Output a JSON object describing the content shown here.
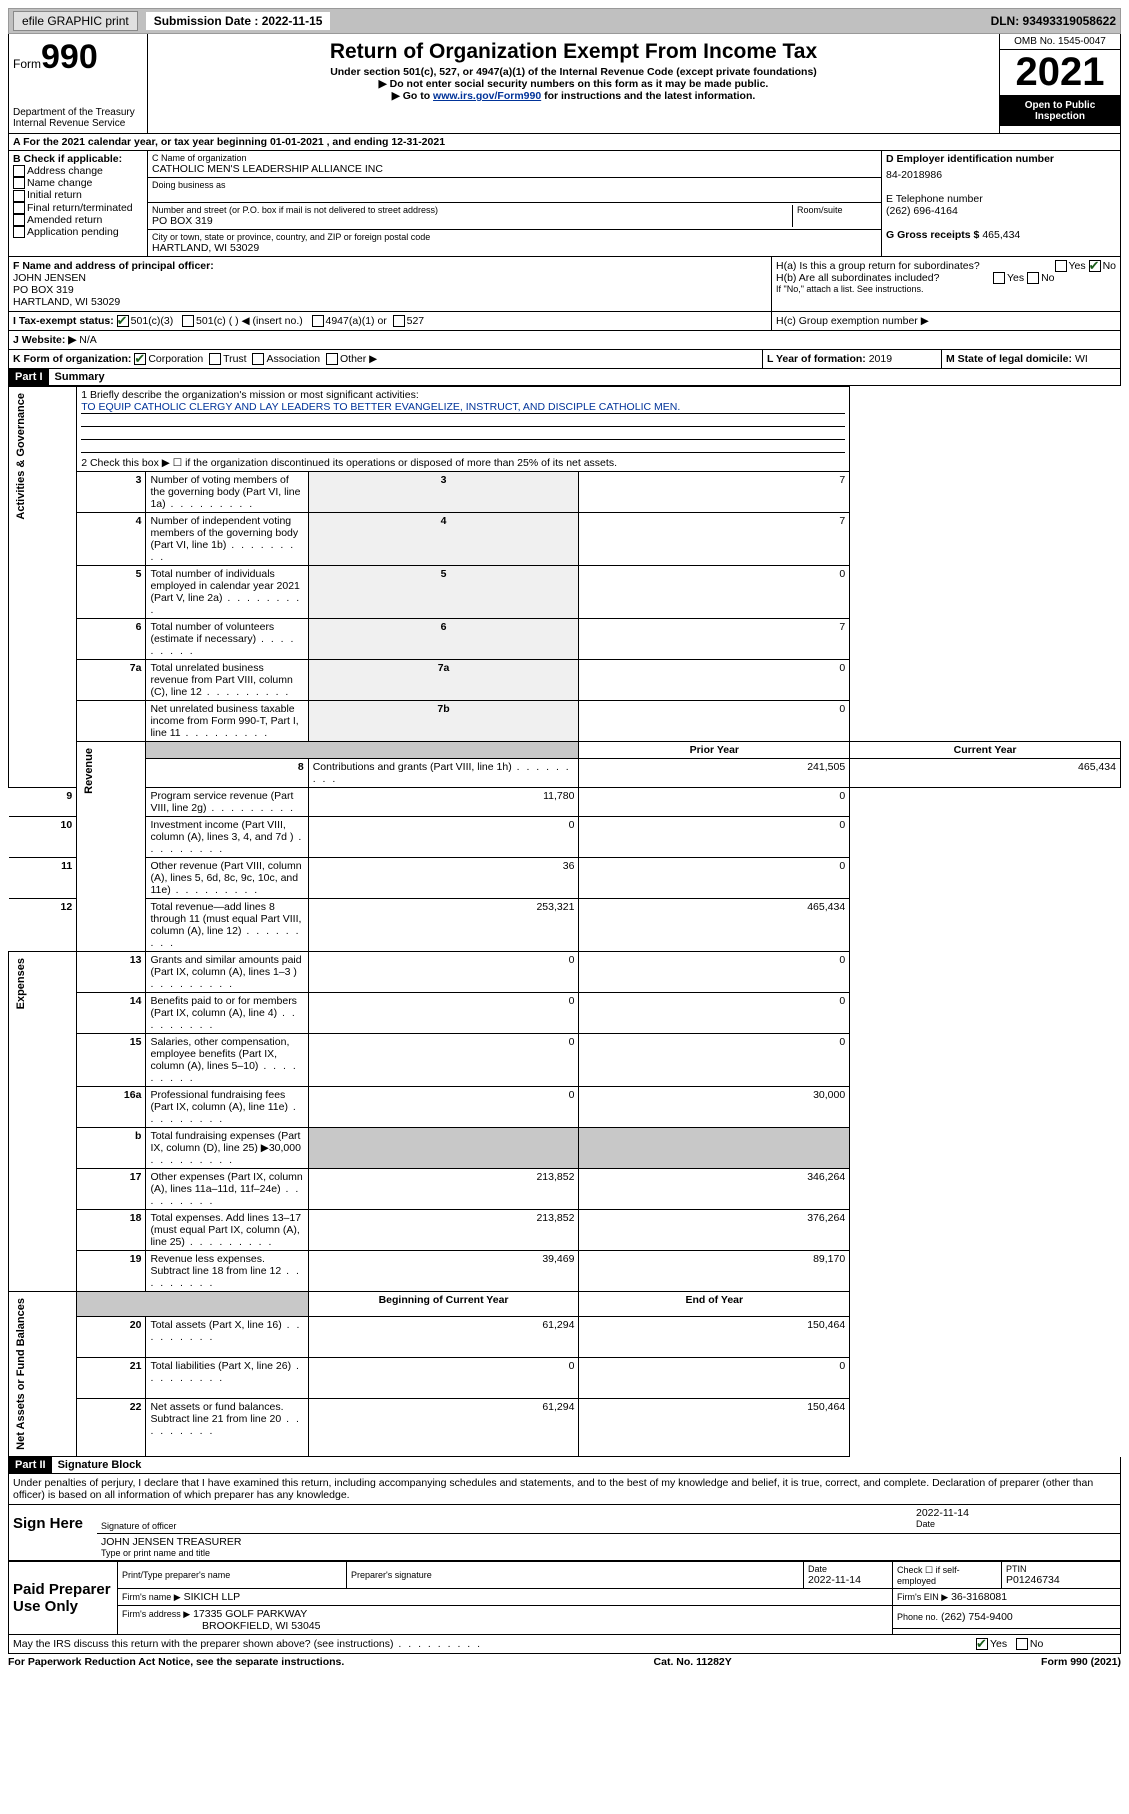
{
  "topbar": {
    "efile": "efile GRAPHIC print",
    "sub_label": "Submission Date : 2022-11-15",
    "dln": "DLN: 93493319058622"
  },
  "header": {
    "form_label": "Form",
    "form_num": "990",
    "dept": "Department of the Treasury",
    "irs": "Internal Revenue Service",
    "title": "Return of Organization Exempt From Income Tax",
    "sub1": "Under section 501(c), 527, or 4947(a)(1) of the Internal Revenue Code (except private foundations)",
    "sub2": "▶ Do not enter social security numbers on this form as it may be made public.",
    "sub3_pre": "▶ Go to ",
    "sub3_link": "www.irs.gov/Form990",
    "sub3_post": " for instructions and the latest information.",
    "omb": "OMB No. 1545-0047",
    "year": "2021",
    "open": "Open to Public Inspection"
  },
  "line_a": "A For the 2021 calendar year, or tax year beginning 01-01-2021   , and ending 12-31-2021",
  "box_b": {
    "label": "B Check if applicable:",
    "items": [
      "Address change",
      "Name change",
      "Initial return",
      "Final return/terminated",
      "Amended return",
      "Application pending"
    ]
  },
  "box_c": {
    "name_label": "C Name of organization",
    "name": "CATHOLIC MEN'S LEADERSHIP ALLIANCE INC",
    "dba_label": "Doing business as",
    "addr_label": "Number and street (or P.O. box if mail is not delivered to street address)",
    "room_label": "Room/suite",
    "addr": "PO BOX 319",
    "city_label": "City or town, state or province, country, and ZIP or foreign postal code",
    "city": "HARTLAND, WI  53029"
  },
  "box_d": {
    "label": "D Employer identification number",
    "ein": "84-2018986",
    "tel_label": "E Telephone number",
    "tel": "(262) 696-4164",
    "gross_label": "G Gross receipts $",
    "gross": "465,434"
  },
  "box_f": {
    "label": "F Name and address of principal officer:",
    "name": "JOHN JENSEN",
    "addr1": "PO BOX 319",
    "addr2": "HARTLAND, WI  53029"
  },
  "box_h": {
    "ha": "H(a)  Is this a group return for subordinates?",
    "hb": "H(b)  Are all subordinates included?",
    "hb_note": "If \"No,\" attach a list. See instructions.",
    "hc": "H(c)  Group exemption number ▶",
    "yes": "Yes",
    "no": "No"
  },
  "box_i": {
    "label": "I   Tax-exempt status:",
    "o1": "501(c)(3)",
    "o2": "501(c) (  ) ◀ (insert no.)",
    "o3": "4947(a)(1) or",
    "o4": "527"
  },
  "box_j": {
    "label": "J   Website: ▶",
    "val": "N/A"
  },
  "box_k": {
    "label": "K Form of organization:",
    "o1": "Corporation",
    "o2": "Trust",
    "o3": "Association",
    "o4": "Other ▶"
  },
  "box_l": {
    "label": "L Year of formation:",
    "val": "2019"
  },
  "box_m": {
    "label": "M State of legal domicile:",
    "val": "WI"
  },
  "part1": {
    "header": "Part I",
    "title": "Summary"
  },
  "summary": {
    "q1_label": "1   Briefly describe the organization's mission or most significant activities:",
    "q1_val": "TO EQUIP CATHOLIC CLERGY AND LAY LEADERS TO BETTER EVANGELIZE, INSTRUCT, AND DISCIPLE CATHOLIC MEN.",
    "q2": "2   Check this box ▶ ☐  if the organization discontinued its operations or disposed of more than 25% of its net assets.",
    "rows_gov": [
      {
        "n": "3",
        "d": "Number of voting members of the governing body (Part VI, line 1a)",
        "b": "3",
        "v": "7"
      },
      {
        "n": "4",
        "d": "Number of independent voting members of the governing body (Part VI, line 1b)",
        "b": "4",
        "v": "7"
      },
      {
        "n": "5",
        "d": "Total number of individuals employed in calendar year 2021 (Part V, line 2a)",
        "b": "5",
        "v": "0"
      },
      {
        "n": "6",
        "d": "Total number of volunteers (estimate if necessary)",
        "b": "6",
        "v": "7"
      },
      {
        "n": "7a",
        "d": "Total unrelated business revenue from Part VIII, column (C), line 12",
        "b": "7a",
        "v": "0"
      },
      {
        "n": "",
        "d": "Net unrelated business taxable income from Form 990-T, Part I, line 11",
        "b": "7b",
        "v": "0"
      }
    ],
    "col_prior": "Prior Year",
    "col_current": "Current Year",
    "rows_rev": [
      {
        "n": "8",
        "d": "Contributions and grants (Part VIII, line 1h)",
        "p": "241,505",
        "c": "465,434"
      },
      {
        "n": "9",
        "d": "Program service revenue (Part VIII, line 2g)",
        "p": "11,780",
        "c": "0"
      },
      {
        "n": "10",
        "d": "Investment income (Part VIII, column (A), lines 3, 4, and 7d )",
        "p": "0",
        "c": "0"
      },
      {
        "n": "11",
        "d": "Other revenue (Part VIII, column (A), lines 5, 6d, 8c, 9c, 10c, and 11e)",
        "p": "36",
        "c": "0"
      },
      {
        "n": "12",
        "d": "Total revenue—add lines 8 through 11 (must equal Part VIII, column (A), line 12)",
        "p": "253,321",
        "c": "465,434"
      }
    ],
    "rows_exp": [
      {
        "n": "13",
        "d": "Grants and similar amounts paid (Part IX, column (A), lines 1–3 )",
        "p": "0",
        "c": "0"
      },
      {
        "n": "14",
        "d": "Benefits paid to or for members (Part IX, column (A), line 4)",
        "p": "0",
        "c": "0"
      },
      {
        "n": "15",
        "d": "Salaries, other compensation, employee benefits (Part IX, column (A), lines 5–10)",
        "p": "0",
        "c": "0"
      },
      {
        "n": "16a",
        "d": "Professional fundraising fees (Part IX, column (A), line 11e)",
        "p": "0",
        "c": "30,000"
      },
      {
        "n": "b",
        "d": "Total fundraising expenses (Part IX, column (D), line 25) ▶30,000",
        "p": "",
        "c": "",
        "shaded": true
      },
      {
        "n": "17",
        "d": "Other expenses (Part IX, column (A), lines 11a–11d, 11f–24e)",
        "p": "213,852",
        "c": "346,264"
      },
      {
        "n": "18",
        "d": "Total expenses. Add lines 13–17 (must equal Part IX, column (A), line 25)",
        "p": "213,852",
        "c": "376,264"
      },
      {
        "n": "19",
        "d": "Revenue less expenses. Subtract line 18 from line 12",
        "p": "39,469",
        "c": "89,170"
      }
    ],
    "col_boy": "Beginning of Current Year",
    "col_eoy": "End of Year",
    "rows_net": [
      {
        "n": "20",
        "d": "Total assets (Part X, line 16)",
        "p": "61,294",
        "c": "150,464"
      },
      {
        "n": "21",
        "d": "Total liabilities (Part X, line 26)",
        "p": "0",
        "c": "0"
      },
      {
        "n": "22",
        "d": "Net assets or fund balances. Subtract line 21 from line 20",
        "p": "61,294",
        "c": "150,464"
      }
    ],
    "vert_gov": "Activities & Governance",
    "vert_rev": "Revenue",
    "vert_exp": "Expenses",
    "vert_net": "Net Assets or Fund Balances"
  },
  "part2": {
    "header": "Part II",
    "title": "Signature Block"
  },
  "sig": {
    "declaration": "Under penalties of perjury, I declare that I have examined this return, including accompanying schedules and statements, and to the best of my knowledge and belief, it is true, correct, and complete. Declaration of preparer (other than officer) is based on all information of which preparer has any knowledge.",
    "sign_here": "Sign Here",
    "sig_officer": "Signature of officer",
    "date": "Date",
    "date_val": "2022-11-14",
    "name_title": "JOHN JENSEN TREASURER",
    "name_title_label": "Type or print name and title",
    "paid": "Paid Preparer Use Only",
    "prep_name_label": "Print/Type preparer's name",
    "prep_sig_label": "Preparer's signature",
    "prep_date_label": "Date",
    "prep_date": "2022-11-14",
    "check_label": "Check ☐ if self-employed",
    "ptin_label": "PTIN",
    "ptin": "P01246734",
    "firm_name_label": "Firm's name   ▶",
    "firm_name": "SIKICH LLP",
    "firm_ein_label": "Firm's EIN ▶",
    "firm_ein": "36-3168081",
    "firm_addr_label": "Firm's address ▶",
    "firm_addr1": "17335 GOLF PARKWAY",
    "firm_addr2": "BROOKFIELD, WI  53045",
    "phone_label": "Phone no.",
    "phone": "(262) 754-9400",
    "discuss": "May the IRS discuss this return with the preparer shown above? (see instructions)",
    "yes": "Yes",
    "no": "No"
  },
  "footer": {
    "left": "For Paperwork Reduction Act Notice, see the separate instructions.",
    "mid": "Cat. No. 11282Y",
    "right": "Form 990 (2021)"
  }
}
